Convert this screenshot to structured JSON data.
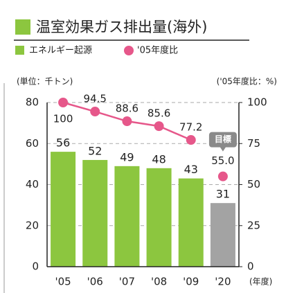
{
  "chart_data": {
    "type": "combo",
    "title": "温室効果ガス排出量(海外)",
    "y_label": "(単位：千トン)",
    "y2_label": "('05年度比：%)",
    "x_label": "(年度)",
    "categories": [
      "'05",
      "'06",
      "'07",
      "'08",
      "'09",
      "'20"
    ],
    "series": [
      {
        "name": "エネルギー起源",
        "type": "bar",
        "color": "#8cc63f",
        "colors": [
          "#8cc63f",
          "#8cc63f",
          "#8cc63f",
          "#8cc63f",
          "#8cc63f",
          "#a3a3a3"
        ],
        "values": [
          56,
          52,
          49,
          48,
          43,
          31
        ]
      },
      {
        "name": "'05年度比",
        "type": "line",
        "axis": "y2",
        "color": "#e6578a",
        "values": [
          100,
          94.5,
          88.6,
          85.6,
          77.2,
          null
        ]
      }
    ],
    "target": {
      "value": 55.0,
      "label": "55.0",
      "annotation": "目標"
    },
    "ylim": [
      0,
      80
    ],
    "yticks": [
      0,
      20,
      40,
      60,
      80
    ],
    "y2lim": [
      0,
      100
    ],
    "y2ticks": [
      0,
      25,
      50,
      75,
      100
    ],
    "grid": true
  }
}
